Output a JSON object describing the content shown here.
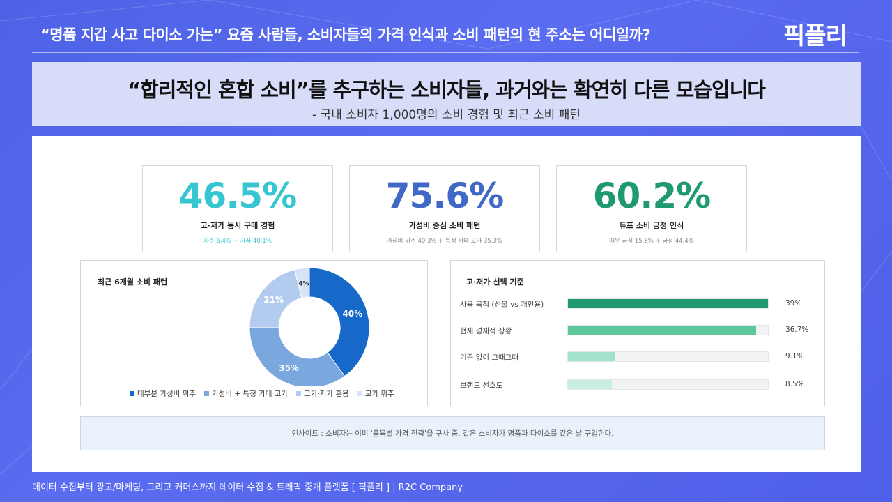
{
  "header": {
    "title": "“명품 지갑 사고 다이소 가는” 요즘 사람들, 소비자들의 가격 인식과 소비 패턴의 현 주소는 어디일까?",
    "logo": "픽플리"
  },
  "headline": {
    "title": "“합리적인 혼합 소비”를 추구하는 소비자들, 과거와는 확연히 다른 모습입니다",
    "subtitle": "- 국내 소비자 1,000명의 소비 경험 및 최근 소비 패턴"
  },
  "kpis": [
    {
      "value": "46.5%",
      "label": "고·저가 동시 구매 경험",
      "sub": "자주 6.4% + 가끔 40.1%",
      "color": "#35c6cf",
      "sub_color": "#35c6cf"
    },
    {
      "value": "75.6%",
      "label": "가성비 중심 소비 패턴",
      "sub": "가성비 위주 40.3% + 특정 카테 고가 35.3%",
      "color": "#3f68c7",
      "sub_color": "#888888"
    },
    {
      "value": "60.2%",
      "label": "듀프 소비 긍정 인식",
      "sub": "매우 긍정 15.8% + 긍정 44.4%",
      "color": "#1f9a6e",
      "sub_color": "#888888"
    }
  ],
  "chart_data": [
    {
      "type": "pie",
      "title": "최근 6개월 소비 패턴",
      "donut": true,
      "categories": [
        "대부분 가성비 위주",
        "가성비 + 특정 카테 고가",
        "고가·저가 혼용",
        "고가 위주"
      ],
      "values": [
        40,
        35,
        21,
        4
      ],
      "labels": [
        "40%",
        "35%",
        "21%",
        "4%"
      ],
      "colors": [
        "#1668c9",
        "#7ba7df",
        "#b4cbf0",
        "#d7e4f8"
      ],
      "legend_position": "bottom"
    },
    {
      "type": "bar",
      "orientation": "horizontal",
      "title": "고·저가 선택 기준",
      "categories": [
        "사용 목적 (선물 vs 개인용)",
        "현재 경제적 상황",
        "기준 없이 그때그때",
        "브랜드 선호도"
      ],
      "values": [
        39,
        36.7,
        9.1,
        8.5
      ],
      "labels": [
        "39%",
        "36.7%",
        "9.1%",
        "8.5%"
      ],
      "xlim": [
        0,
        39
      ],
      "colors": [
        "#1f9a6e",
        "#5fc79c",
        "#a3e3cc",
        "#c9efe1"
      ]
    }
  ],
  "insight": "인사이트 : 소비자는 이미 '품목별 가격 전략'을 구사 중. 같은 소비자가 명품과 다이소를 같은 날 구입한다.",
  "footer": "데이터 수집부터 광고/마케팅, 그리고 커머스까지 데이터 수집 & 트래픽 중개 플랫폼 [ 픽플리 ]  |  R2C Company"
}
